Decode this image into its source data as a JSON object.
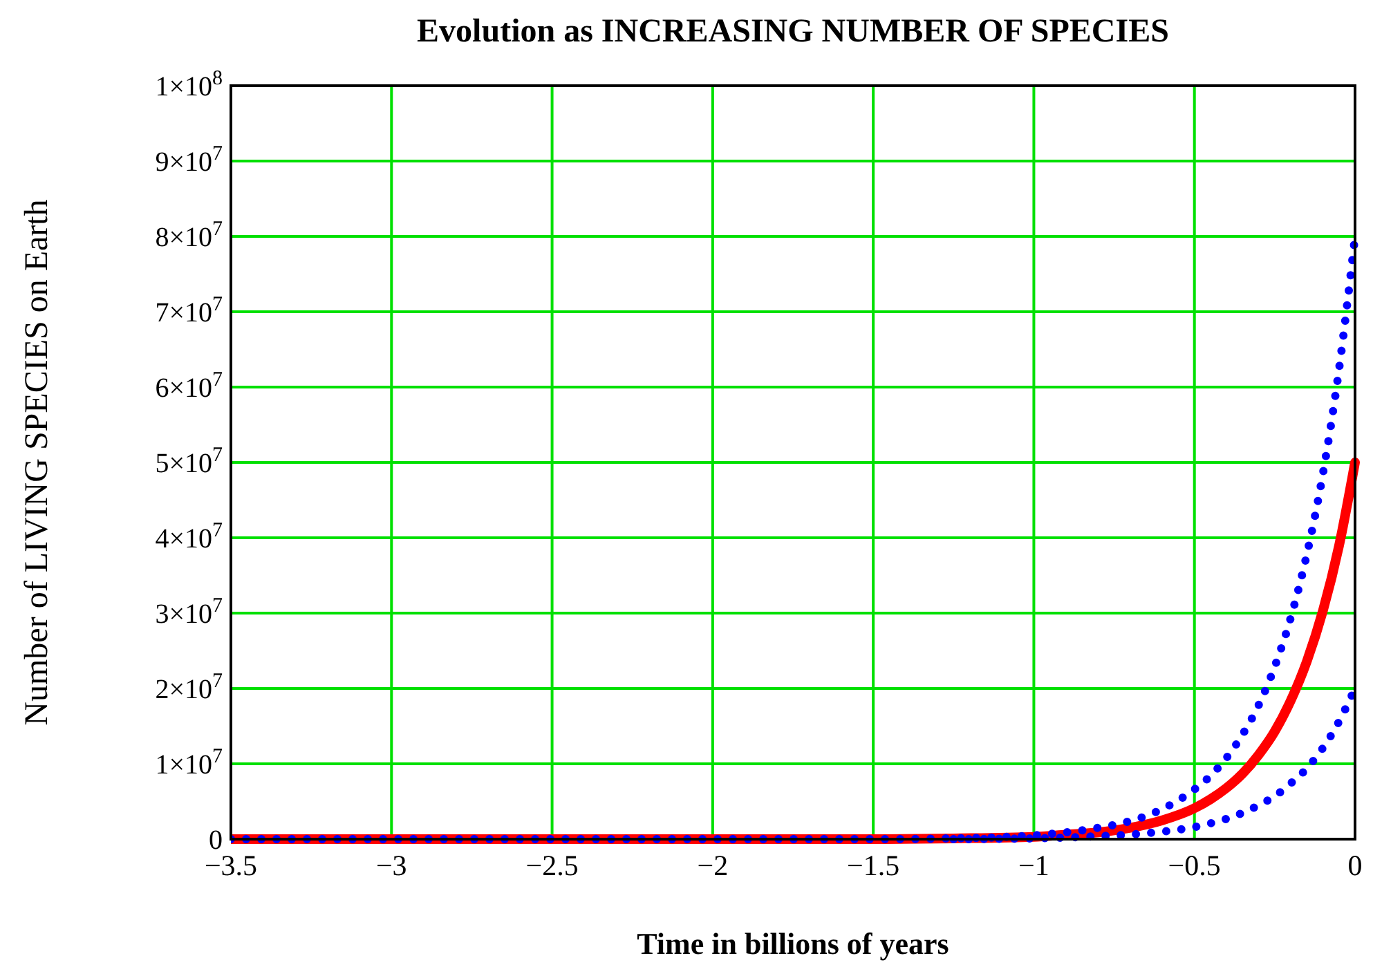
{
  "chart_data": {
    "type": "line",
    "title": "Evolution as INCREASING NUMBER OF SPECIES",
    "xlabel": "Time in billions of years",
    "ylabel": "Number of LIVING SPECIES on Earth",
    "x": [
      -3.5,
      -3,
      -2.5,
      -2,
      -1.5,
      -1.25,
      -1,
      -0.9,
      -0.8,
      -0.7,
      -0.6,
      -0.5,
      -0.45,
      -0.4,
      -0.35,
      -0.3,
      -0.25,
      -0.2,
      -0.15,
      -0.1,
      -0.05,
      0
    ],
    "series": [
      {
        "color": "#ff0000",
        "line_style": "solid",
        "values": [
          0,
          0,
          0,
          0,
          0,
          100000,
          300000,
          600000,
          900000,
          1500000,
          2500000,
          4100000,
          5300000,
          6800000,
          8700000,
          11200000,
          14300000,
          18400000,
          23600000,
          30300000,
          38900000,
          50000000
        ]
      },
      {
        "color": "#0000ff",
        "line_style": "dotted",
        "values": [
          0,
          0,
          0,
          0,
          0,
          100000,
          500000,
          900000,
          1500000,
          2400000,
          4000000,
          6600000,
          8400000,
          10800000,
          13900000,
          17800000,
          22900000,
          29400000,
          37800000,
          48500000,
          62300000,
          80000000
        ]
      },
      {
        "color": "#0000ff",
        "line_style": "dotted",
        "values": [
          null,
          null,
          null,
          null,
          null,
          0,
          100000,
          200000,
          400000,
          600000,
          1000000,
          1600000,
          2100000,
          2700000,
          3500000,
          4500000,
          5700000,
          7400000,
          9400000,
          12100000,
          15600000,
          20000000
        ]
      }
    ],
    "xlim": [
      -3.5,
      0
    ],
    "xticks": [
      {
        "value": -3.5,
        "label": "−3.5"
      },
      {
        "value": -3,
        "label": "−3"
      },
      {
        "value": -2.5,
        "label": "−2.5"
      },
      {
        "value": -2,
        "label": "−2"
      },
      {
        "value": -1.5,
        "label": "−1.5"
      },
      {
        "value": -1,
        "label": "−1"
      },
      {
        "value": -0.5,
        "label": "−0.5"
      },
      0
    ],
    "ylim": [
      0,
      100000000
    ],
    "yticks": [
      0,
      {
        "value": 10000000,
        "label": "1×10$^{7}$"
      },
      {
        "value": 20000000,
        "label": "2×10$^{7}$"
      },
      {
        "value": 30000000,
        "label": "3×10$^{7}$"
      },
      {
        "value": 40000000,
        "label": "4×10$^{7}$"
      },
      {
        "value": 50000000,
        "label": "5×10$^{7}$"
      },
      {
        "value": 60000000,
        "label": "6×10$^{7}$"
      },
      {
        "value": 70000000,
        "label": "7×10$^{7}$"
      },
      {
        "value": 80000000,
        "label": "8×10$^{7}$"
      },
      {
        "value": 90000000,
        "label": "9×10$^{7}$"
      },
      {
        "value": 100000000,
        "label": "1×10$^{8}$"
      }
    ],
    "grid": true
  }
}
